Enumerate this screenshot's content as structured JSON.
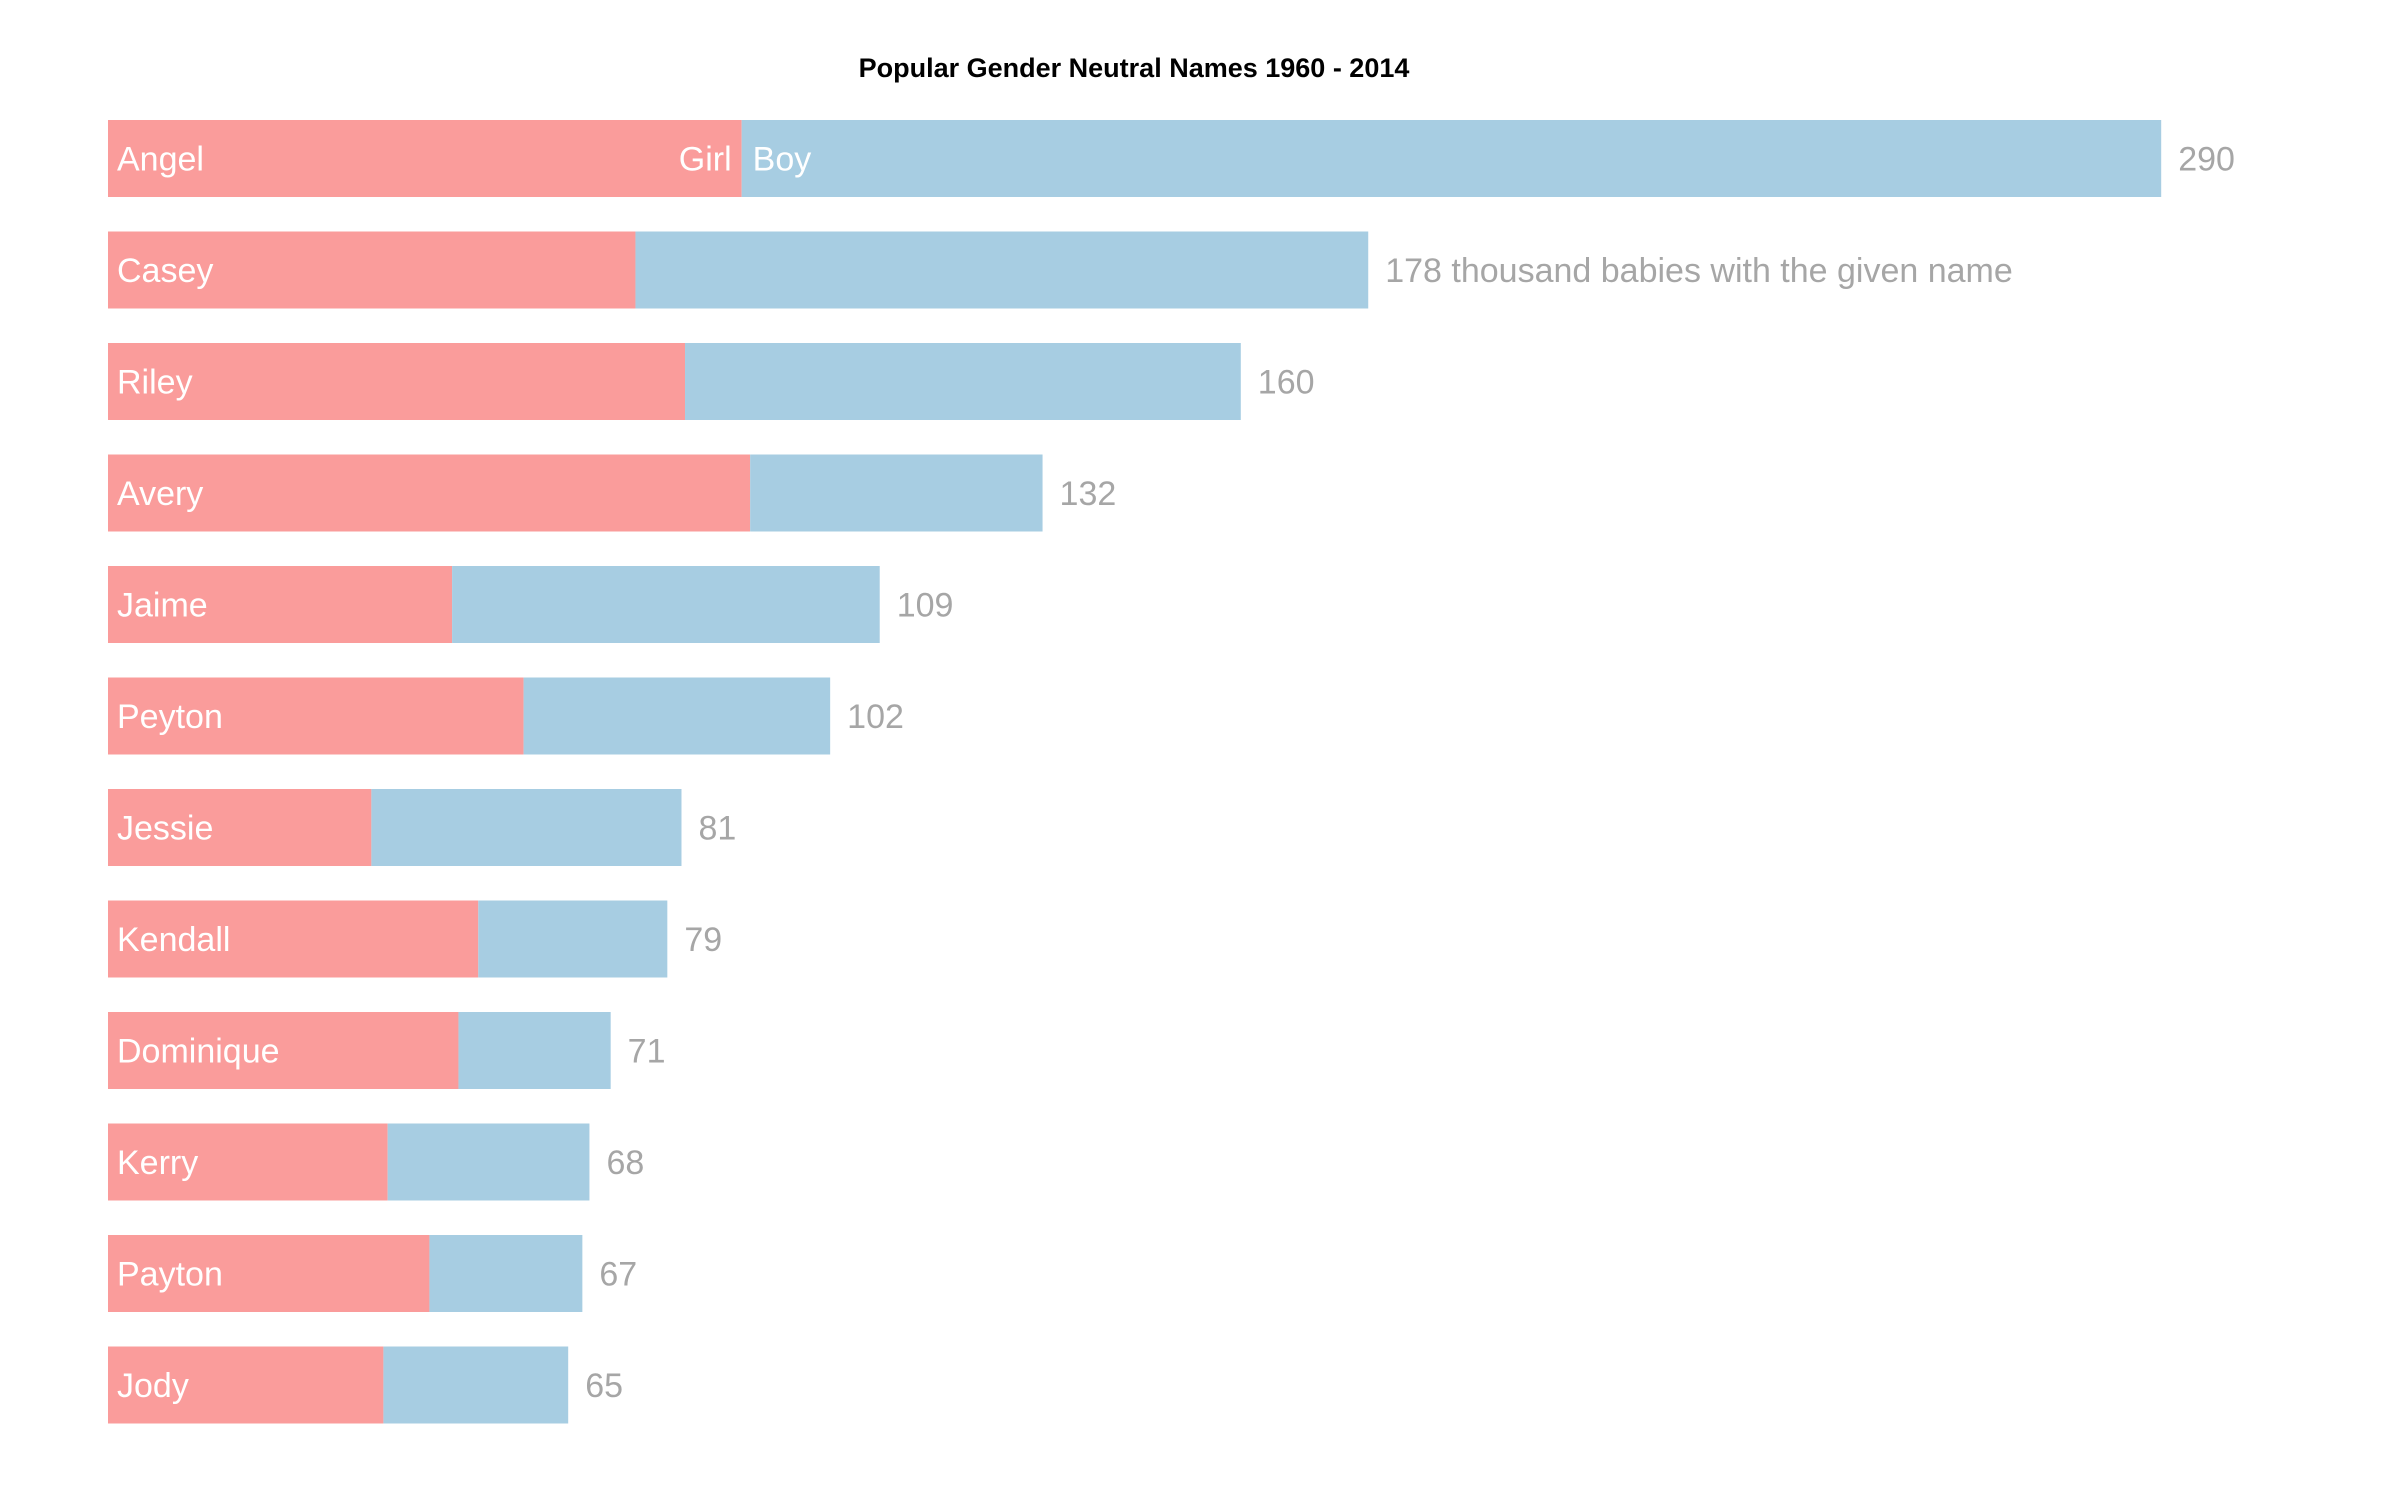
{
  "chart_data": {
    "type": "bar",
    "orientation": "horizontal",
    "stacked": true,
    "title": "Popular Gender Neutral Names 1960 - 2014",
    "xlabel": "",
    "ylabel": "",
    "xlim": [
      0,
      290
    ],
    "grid": false,
    "categories": [
      "Angel",
      "Casey",
      "Riley",
      "Avery",
      "Jaime",
      "Peyton",
      "Jessie",
      "Kendall",
      "Dominique",
      "Kerry",
      "Payton",
      "Jody"
    ],
    "series": [
      {
        "name": "Girl",
        "color": "#fa9c9b",
        "values": [
          89.5,
          74.5,
          81.5,
          90.7,
          48.6,
          58.7,
          37.2,
          52.3,
          49.5,
          39.5,
          45.4,
          38.9
        ]
      },
      {
        "name": "Boy",
        "color": "#a7cde2",
        "values": [
          200.5,
          103.5,
          78.5,
          41.3,
          60.4,
          43.3,
          43.8,
          26.7,
          21.5,
          28.5,
          21.6,
          26.1
        ]
      }
    ],
    "totals": [
      290,
      178,
      160,
      132,
      109,
      102,
      81,
      79,
      71,
      68,
      67,
      65
    ],
    "total_labels": [
      "290",
      "178 thousand babies with the given name",
      "160",
      "132",
      "109",
      "102",
      "81",
      "79",
      "71",
      "68",
      "67",
      "65"
    ],
    "segment_labels": {
      "girl": "Girl",
      "boy": "Boy"
    },
    "colors": {
      "girl": "#fa9c9b",
      "boy": "#a7cde2",
      "total_text": "#a6a6a6",
      "name_text": "#ffffff",
      "title_text": "#000000"
    }
  }
}
